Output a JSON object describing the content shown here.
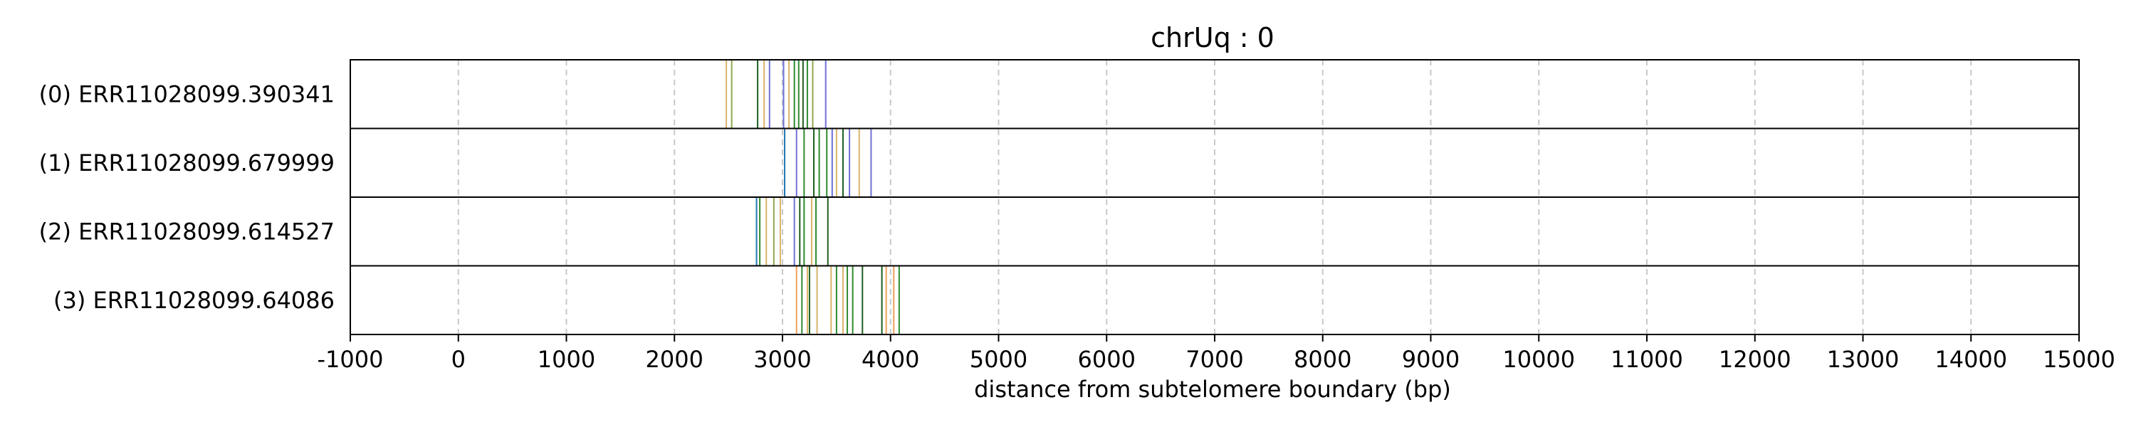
{
  "chart_data": {
    "type": "event-raster",
    "title": "chrUq : 0",
    "xlabel": "distance from subtelomere boundary (bp)",
    "ylabel": "",
    "xlim": [
      -1000,
      15000
    ],
    "xticks": [
      -1000,
      0,
      1000,
      2000,
      3000,
      4000,
      5000,
      6000,
      7000,
      8000,
      9000,
      10000,
      11000,
      12000,
      13000,
      14000,
      15000
    ],
    "tick_labels": [
      "-1000",
      "0",
      "1000",
      "2000",
      "3000",
      "4000",
      "5000",
      "6000",
      "7000",
      "8000",
      "9000",
      "10000",
      "11000",
      "12000",
      "13000",
      "14000",
      "15000"
    ],
    "grid": "vertical dashed at x ticks",
    "colors": {
      "tan": "#d9b36a",
      "green": "#2e8b2e",
      "darkgreen": "#1f5f1f",
      "blue": "#6f6fd6",
      "teal": "#1f77b4",
      "orange": "#f0a05a",
      "olive": "#8fa84a"
    },
    "reads": [
      {
        "label": "(0) ERR11028099.390341",
        "events": [
          {
            "x": 2480,
            "c": "tan"
          },
          {
            "x": 2530,
            "c": "olive"
          },
          {
            "x": 2770,
            "c": "darkgreen"
          },
          {
            "x": 2830,
            "c": "tan"
          },
          {
            "x": 2880,
            "c": "blue"
          },
          {
            "x": 3010,
            "c": "blue"
          },
          {
            "x": 3060,
            "c": "tan"
          },
          {
            "x": 3110,
            "c": "green"
          },
          {
            "x": 3150,
            "c": "green"
          },
          {
            "x": 3190,
            "c": "darkgreen"
          },
          {
            "x": 3230,
            "c": "green"
          },
          {
            "x": 3280,
            "c": "olive"
          },
          {
            "x": 3400,
            "c": "blue"
          }
        ]
      },
      {
        "label": "(1) ERR11028099.679999",
        "events": [
          {
            "x": 3020,
            "c": "teal"
          },
          {
            "x": 3130,
            "c": "blue"
          },
          {
            "x": 3200,
            "c": "green"
          },
          {
            "x": 3290,
            "c": "darkgreen"
          },
          {
            "x": 3340,
            "c": "green"
          },
          {
            "x": 3410,
            "c": "green"
          },
          {
            "x": 3460,
            "c": "blue"
          },
          {
            "x": 3500,
            "c": "tan"
          },
          {
            "x": 3560,
            "c": "darkgreen"
          },
          {
            "x": 3620,
            "c": "blue"
          },
          {
            "x": 3710,
            "c": "tan"
          },
          {
            "x": 3820,
            "c": "blue"
          }
        ]
      },
      {
        "label": "(2) ERR11028099.614527",
        "events": [
          {
            "x": 2760,
            "c": "teal"
          },
          {
            "x": 2790,
            "c": "green"
          },
          {
            "x": 2850,
            "c": "tan"
          },
          {
            "x": 2920,
            "c": "olive"
          },
          {
            "x": 2980,
            "c": "tan"
          },
          {
            "x": 3110,
            "c": "blue"
          },
          {
            "x": 3160,
            "c": "darkgreen"
          },
          {
            "x": 3200,
            "c": "green"
          },
          {
            "x": 3270,
            "c": "tan"
          },
          {
            "x": 3310,
            "c": "green"
          },
          {
            "x": 3420,
            "c": "darkgreen"
          }
        ]
      },
      {
        "label": "(3) ERR11028099.64086",
        "events": [
          {
            "x": 3130,
            "c": "orange"
          },
          {
            "x": 3180,
            "c": "green"
          },
          {
            "x": 3230,
            "c": "tan"
          },
          {
            "x": 3250,
            "c": "darkgreen"
          },
          {
            "x": 3320,
            "c": "tan"
          },
          {
            "x": 3450,
            "c": "tan"
          },
          {
            "x": 3500,
            "c": "green"
          },
          {
            "x": 3560,
            "c": "tan"
          },
          {
            "x": 3600,
            "c": "green"
          },
          {
            "x": 3650,
            "c": "green"
          },
          {
            "x": 3740,
            "c": "darkgreen"
          },
          {
            "x": 3920,
            "c": "darkgreen"
          },
          {
            "x": 3960,
            "c": "orange"
          },
          {
            "x": 4030,
            "c": "orange"
          },
          {
            "x": 4080,
            "c": "green"
          }
        ]
      }
    ]
  }
}
